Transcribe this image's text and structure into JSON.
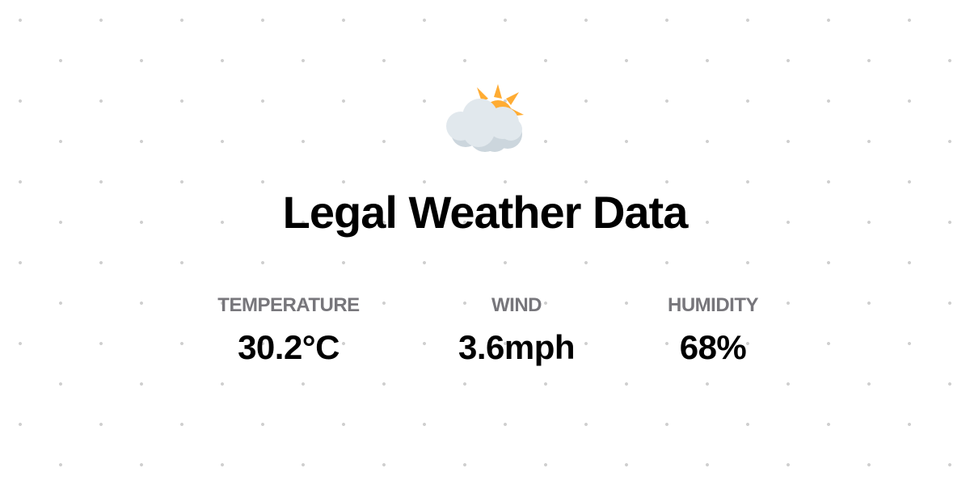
{
  "icon": "sun-behind-cloud-icon",
  "title": "Legal Weather Data",
  "stats": [
    {
      "label": "TEMPERATURE",
      "value": "30.2°C"
    },
    {
      "label": "WIND",
      "value": "3.6mph"
    },
    {
      "label": "HUMIDITY",
      "value": "68%"
    }
  ],
  "colors": {
    "sun": "#FFAC33",
    "cloud": "#E1E8ED",
    "cloud_shadow": "#CCD6DD",
    "label": "#77767B"
  }
}
